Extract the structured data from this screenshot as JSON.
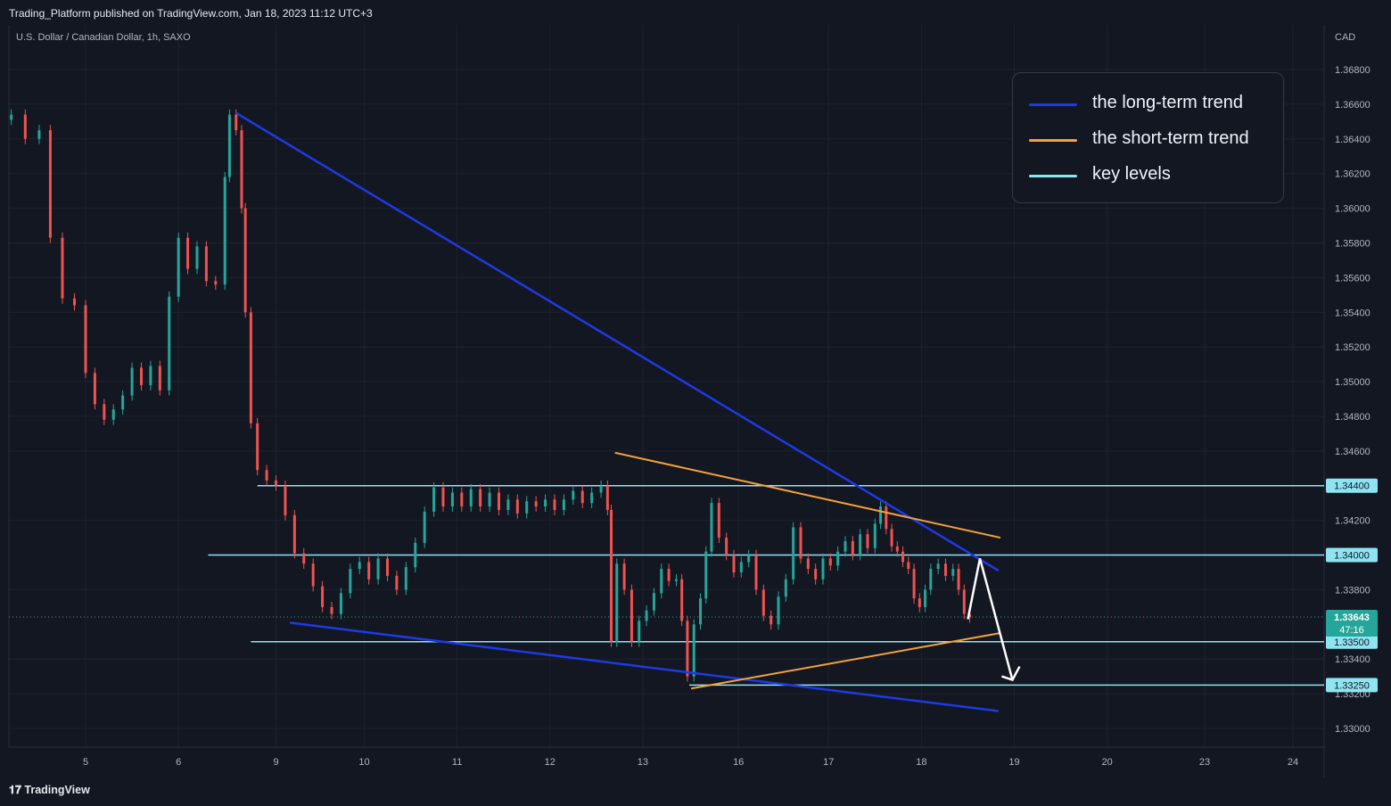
{
  "header": {
    "published": "Trading_Platform published on TradingView.com, Jan 18, 2023 11:12 UTC+3",
    "symbol": "U.S. Dollar / Canadian Dollar, 1h, SAXO"
  },
  "footer": {
    "logo_text": "TradingView"
  },
  "legend": [
    {
      "label": "the long-term trend",
      "color": "#1e3ae6"
    },
    {
      "label": "the short-term trend",
      "color": "#f5a23a"
    },
    {
      "label": "key levels",
      "color": "#8fe4f2"
    }
  ],
  "chart_data": {
    "type": "candlestick",
    "currency": "CAD",
    "ylim": [
      1.329,
      1.369
    ],
    "xlim": [
      4.2,
      24.8
    ],
    "y_ticks": [
      "1.36800",
      "1.36600",
      "1.36400",
      "1.36200",
      "1.36000",
      "1.35800",
      "1.35600",
      "1.35400",
      "1.35200",
      "1.35000",
      "1.34800",
      "1.34600",
      "1.34200",
      "1.33800",
      "1.33400",
      "1.33200",
      "1.33000"
    ],
    "x_ticks": [
      {
        "label": "5",
        "x": 5
      },
      {
        "label": "6",
        "x": 6
      },
      {
        "label": "9",
        "x": 7.05
      },
      {
        "label": "10",
        "x": 8
      },
      {
        "label": "11",
        "x": 9
      },
      {
        "label": "12",
        "x": 10
      },
      {
        "label": "13",
        "x": 11
      },
      {
        "label": "16",
        "x": 12.03
      },
      {
        "label": "17",
        "x": 13
      },
      {
        "label": "18",
        "x": 14
      },
      {
        "label": "19",
        "x": 15
      },
      {
        "label": "20",
        "x": 16
      },
      {
        "label": "23",
        "x": 17.05
      },
      {
        "label": "24",
        "x": 18
      }
    ],
    "key_levels": [
      {
        "value": 1.344,
        "label": "1.34400",
        "x_start": 6.85
      },
      {
        "value": 1.34,
        "label": "1.34000",
        "x_start": 6.32
      },
      {
        "value": 1.335,
        "label": "1.33500",
        "x_start": 6.78
      },
      {
        "value": 1.3325,
        "label": "1.33250",
        "x_start": 11.5
      }
    ],
    "current_price": {
      "value": 1.33643,
      "label": "1.33643",
      "countdown": "47:16"
    },
    "trend_lines": [
      {
        "name": "the long-term trend",
        "color": "#1e3ae6",
        "points": [
          [
            6.62,
            1.3655
          ],
          [
            14.83,
            1.3391
          ]
        ]
      },
      {
        "name": "the long-term trend",
        "color": "#1e3ae6",
        "points": [
          [
            7.2,
            1.3361
          ],
          [
            14.83,
            1.331
          ]
        ]
      },
      {
        "name": "the short-term trend",
        "color": "#f5a23a",
        "points": [
          [
            10.7,
            1.3459
          ],
          [
            14.85,
            1.341
          ]
        ]
      },
      {
        "name": "the short-term trend",
        "color": "#f5a23a",
        "points": [
          [
            11.52,
            1.3323
          ],
          [
            14.85,
            1.3355
          ]
        ]
      }
    ],
    "projection": [
      [
        14.5,
        1.3363
      ],
      [
        14.63,
        1.3398
      ],
      [
        14.98,
        1.3328
      ]
    ],
    "series": [
      {
        "name": "candles",
        "values": [
          [
            4.2,
            1.3651,
            1.3654
          ],
          [
            4.35,
            1.3654,
            1.364
          ],
          [
            4.5,
            1.364,
            1.3645
          ],
          [
            4.62,
            1.3645,
            1.3583
          ],
          [
            4.75,
            1.3583,
            1.3548
          ],
          [
            4.88,
            1.3548,
            1.3544
          ],
          [
            5.0,
            1.3544,
            1.3505
          ],
          [
            5.1,
            1.3505,
            1.3487
          ],
          [
            5.2,
            1.3487,
            1.3478
          ],
          [
            5.3,
            1.3478,
            1.3484
          ],
          [
            5.4,
            1.3484,
            1.3492
          ],
          [
            5.5,
            1.3492,
            1.3508
          ],
          [
            5.6,
            1.3508,
            1.3498
          ],
          [
            5.7,
            1.3498,
            1.3509
          ],
          [
            5.8,
            1.3509,
            1.3495
          ],
          [
            5.9,
            1.3495,
            1.3549
          ],
          [
            6.0,
            1.3549,
            1.3583
          ],
          [
            6.1,
            1.3583,
            1.3565
          ],
          [
            6.2,
            1.3565,
            1.3578
          ],
          [
            6.3,
            1.3578,
            1.3558
          ],
          [
            6.4,
            1.3558,
            1.3556
          ],
          [
            6.5,
            1.3556,
            1.3618
          ],
          [
            6.55,
            1.3618,
            1.3654
          ],
          [
            6.62,
            1.3654,
            1.3645
          ],
          [
            6.68,
            1.3645,
            1.36
          ],
          [
            6.72,
            1.36,
            1.354
          ],
          [
            6.78,
            1.354,
            1.3476
          ],
          [
            6.85,
            1.3476,
            1.3449
          ],
          [
            6.95,
            1.3449,
            1.3443
          ],
          [
            7.05,
            1.3443,
            1.344
          ],
          [
            7.15,
            1.344,
            1.3423
          ],
          [
            7.25,
            1.3423,
            1.3401
          ],
          [
            7.35,
            1.3401,
            1.3395
          ],
          [
            7.45,
            1.3395,
            1.3382
          ],
          [
            7.55,
            1.3382,
            1.337
          ],
          [
            7.65,
            1.337,
            1.3366
          ],
          [
            7.75,
            1.3366,
            1.3378
          ],
          [
            7.85,
            1.3378,
            1.3392
          ],
          [
            7.95,
            1.3392,
            1.3396
          ],
          [
            8.05,
            1.3396,
            1.3386
          ],
          [
            8.15,
            1.3386,
            1.3398
          ],
          [
            8.25,
            1.3398,
            1.3388
          ],
          [
            8.35,
            1.3388,
            1.338
          ],
          [
            8.45,
            1.338,
            1.3393
          ],
          [
            8.55,
            1.3393,
            1.3407
          ],
          [
            8.65,
            1.3407,
            1.3425
          ],
          [
            8.75,
            1.3425,
            1.3439
          ],
          [
            8.85,
            1.3439,
            1.3428
          ],
          [
            8.95,
            1.3428,
            1.3436
          ],
          [
            9.05,
            1.3436,
            1.3428
          ],
          [
            9.15,
            1.3428,
            1.3438
          ],
          [
            9.25,
            1.3438,
            1.3428
          ],
          [
            9.35,
            1.3428,
            1.3436
          ],
          [
            9.45,
            1.3436,
            1.3426
          ],
          [
            9.55,
            1.3426,
            1.3432
          ],
          [
            9.65,
            1.3432,
            1.3424
          ],
          [
            9.75,
            1.3424,
            1.3431
          ],
          [
            9.85,
            1.3431,
            1.3428
          ],
          [
            9.95,
            1.3428,
            1.3432
          ],
          [
            10.05,
            1.3432,
            1.3426
          ],
          [
            10.15,
            1.3426,
            1.3432
          ],
          [
            10.25,
            1.3432,
            1.3437
          ],
          [
            10.35,
            1.3437,
            1.343
          ],
          [
            10.45,
            1.343,
            1.3436
          ],
          [
            10.55,
            1.3436,
            1.344
          ],
          [
            10.62,
            1.344,
            1.3426
          ],
          [
            10.66,
            1.3426,
            1.335
          ],
          [
            10.72,
            1.335,
            1.3395
          ],
          [
            10.8,
            1.3395,
            1.338
          ],
          [
            10.88,
            1.338,
            1.335
          ],
          [
            10.96,
            1.335,
            1.3362
          ],
          [
            11.04,
            1.3362,
            1.3368
          ],
          [
            11.12,
            1.3368,
            1.3378
          ],
          [
            11.2,
            1.3378,
            1.3392
          ],
          [
            11.28,
            1.3392,
            1.3385
          ],
          [
            11.36,
            1.3385,
            1.3386
          ],
          [
            11.42,
            1.3386,
            1.3362
          ],
          [
            11.48,
            1.3362,
            1.333
          ],
          [
            11.55,
            1.333,
            1.336
          ],
          [
            11.62,
            1.336,
            1.3375
          ],
          [
            11.68,
            1.3375,
            1.3402
          ],
          [
            11.74,
            1.3402,
            1.343
          ],
          [
            11.82,
            1.343,
            1.341
          ],
          [
            11.9,
            1.341,
            1.34
          ],
          [
            11.98,
            1.34,
            1.339
          ],
          [
            12.06,
            1.339,
            1.3396
          ],
          [
            12.14,
            1.3396,
            1.34
          ],
          [
            12.22,
            1.34,
            1.338
          ],
          [
            12.3,
            1.338,
            1.3365
          ],
          [
            12.38,
            1.3365,
            1.336
          ],
          [
            12.46,
            1.336,
            1.3376
          ],
          [
            12.54,
            1.3376,
            1.3386
          ],
          [
            12.62,
            1.3386,
            1.3416
          ],
          [
            12.7,
            1.3416,
            1.3398
          ],
          [
            12.78,
            1.3398,
            1.3392
          ],
          [
            12.86,
            1.3392,
            1.3386
          ],
          [
            12.94,
            1.3386,
            1.3398
          ],
          [
            13.02,
            1.3398,
            1.3394
          ],
          [
            13.1,
            1.3394,
            1.3402
          ],
          [
            13.18,
            1.3402,
            1.3408
          ],
          [
            13.26,
            1.3408,
            1.34
          ],
          [
            13.34,
            1.34,
            1.3412
          ],
          [
            13.42,
            1.3412,
            1.3404
          ],
          [
            13.5,
            1.3404,
            1.3418
          ],
          [
            13.56,
            1.3418,
            1.3428
          ],
          [
            13.62,
            1.3428,
            1.3415
          ],
          [
            13.68,
            1.3415,
            1.3405
          ],
          [
            13.74,
            1.3405,
            1.3402
          ],
          [
            13.8,
            1.3402,
            1.3396
          ],
          [
            13.86,
            1.3396,
            1.3392
          ],
          [
            13.92,
            1.3392,
            1.3375
          ],
          [
            13.98,
            1.3375,
            1.337
          ],
          [
            14.04,
            1.337,
            1.338
          ],
          [
            14.1,
            1.338,
            1.3392
          ],
          [
            14.18,
            1.3392,
            1.3395
          ],
          [
            14.26,
            1.3395,
            1.3388
          ],
          [
            14.34,
            1.3388,
            1.3392
          ],
          [
            14.4,
            1.3392,
            1.338
          ],
          [
            14.46,
            1.338,
            1.3366
          ],
          [
            14.52,
            1.3366,
            1.3364
          ]
        ]
      }
    ]
  }
}
